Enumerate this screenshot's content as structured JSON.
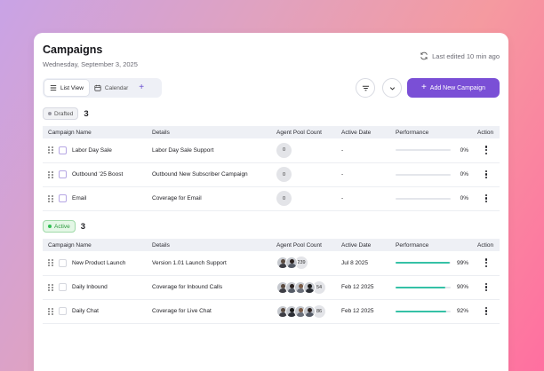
{
  "header": {
    "title": "Campaigns",
    "date": "Wednesday, September 3, 2025",
    "last_edited": "Last edited 10 min ago"
  },
  "toolbar": {
    "tabs": [
      {
        "label": "List View",
        "icon": "list-icon",
        "active": true
      },
      {
        "label": "Calendar",
        "icon": "calendar-icon",
        "active": false
      }
    ],
    "add_tab": "+",
    "filter_icon": "filter-icon",
    "expand_icon": "chevron-down-icon",
    "add_button": "Add New Campaign",
    "add_button_plus": "+",
    "accent_color": "#7a4fd6"
  },
  "columns": [
    "Campaign Name",
    "Details",
    "Agent Pool Count",
    "Active Date",
    "Performance",
    "Action"
  ],
  "drafted": {
    "badge": "Drafted",
    "count": "3",
    "rows": [
      {
        "name": "Labor Day Sale",
        "details": "Labor Day Sale Support",
        "pool": "0",
        "date": "-",
        "perf": "0%"
      },
      {
        "name": "Outbound '25 Boost",
        "details": "Outbound New Subscriber Campaign",
        "pool": "0",
        "date": "-",
        "perf": "0%"
      },
      {
        "name": "Email",
        "details": "Coverage for Email",
        "pool": "0",
        "date": "-",
        "perf": "0%"
      }
    ]
  },
  "active": {
    "badge": "Active",
    "count": "3",
    "rows": [
      {
        "name": "New Product Launch",
        "details": "Version 1.01 Launch Support",
        "pool": "239",
        "date": "Jul 8 2025",
        "perf": "99%",
        "perf_value": 0.99
      },
      {
        "name": "Daily Inbound",
        "details": "Coverage for Inbound Calls",
        "pool": "54",
        "date": "Feb 12 2025",
        "perf": "90%",
        "perf_value": 0.9
      },
      {
        "name": "Daily Chat",
        "details": "Coverage for Live Chat",
        "pool": "86",
        "date": "Feb 12 2025",
        "perf": "92%",
        "perf_value": 0.92
      }
    ]
  },
  "colors": {
    "progress": "#35c1a6",
    "active_badge": "#2fbf52"
  }
}
